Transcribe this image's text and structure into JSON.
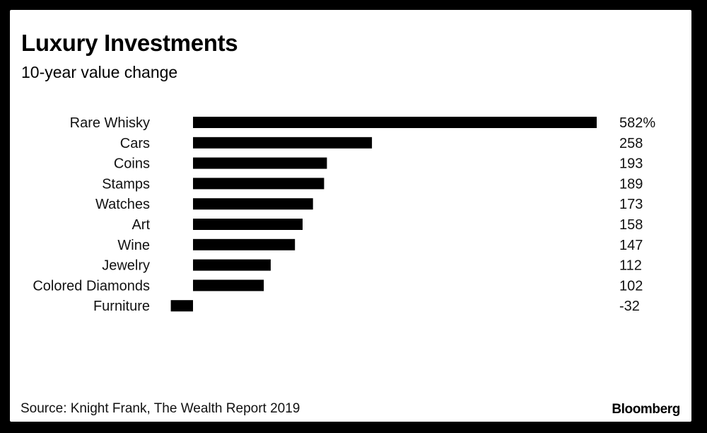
{
  "header": {
    "title": "Luxury Investments",
    "subtitle": "10-year value change"
  },
  "footer": {
    "source": "Source: Knight Frank, The Wealth Report 2019",
    "brand": "Bloomberg"
  },
  "colors": {
    "bar": "#000000",
    "background": "#ffffff",
    "frame": "#000000"
  },
  "chart_data": {
    "type": "bar",
    "orientation": "horizontal",
    "title": "Luxury Investments",
    "subtitle": "10-year value change",
    "xlabel": "",
    "ylabel": "",
    "categories": [
      "Rare Whisky",
      "Cars",
      "Coins",
      "Stamps",
      "Watches",
      "Art",
      "Wine",
      "Jewelry",
      "Colored Diamonds",
      "Furniture"
    ],
    "values": [
      582,
      258,
      193,
      189,
      173,
      158,
      147,
      112,
      102,
      -32
    ],
    "value_labels": [
      "582%",
      "258",
      "193",
      "189",
      "173",
      "158",
      "147",
      "112",
      "102",
      "-32"
    ],
    "unit": "%",
    "xlim": [
      -32,
      582
    ],
    "grid": false,
    "legend": "none"
  }
}
